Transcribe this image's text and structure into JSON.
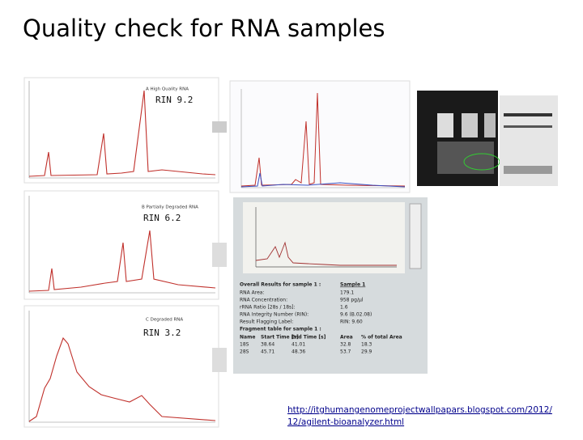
{
  "title": "Quality check for RNA samples",
  "panels": [
    {
      "label": "A High Quality RNA",
      "rin": "RIN 9.2"
    },
    {
      "label": "B Partially Degraded RNA",
      "rin": "RIN 6.2"
    },
    {
      "label": "C Degraded RNA",
      "rin": "RIN 3.2"
    }
  ],
  "results": {
    "heading": "Overall Results for sample 1 :",
    "sample": "Sample 1",
    "rows": [
      [
        "RNA Area:",
        "179.1"
      ],
      [
        "RNA Concentration:",
        "958 pg/µl"
      ],
      [
        "rRNA Ratio [28s / 18s]:",
        "1.6"
      ],
      [
        "RNA Integrity Number (RIN):",
        "9.6 (B.02.08)"
      ],
      [
        "Result Flagging Label:",
        "RIN: 9.60"
      ]
    ],
    "fragment_heading": "Fragment table for sample 1 :",
    "columns": [
      "Name",
      "Start Time [s]",
      "End Time [s]",
      "Area",
      "% of total Area"
    ],
    "fragments": [
      [
        "18S",
        "38.64",
        "41.01",
        "32.8",
        "18.3"
      ],
      [
        "28S",
        "45.71",
        "48.36",
        "53.7",
        "29.9"
      ]
    ]
  },
  "link": [
    "http://itghumangenomeprojectwallpapars.blogspot.com/2012/",
    "12/agilent-bioanalyzer.html"
  ]
}
